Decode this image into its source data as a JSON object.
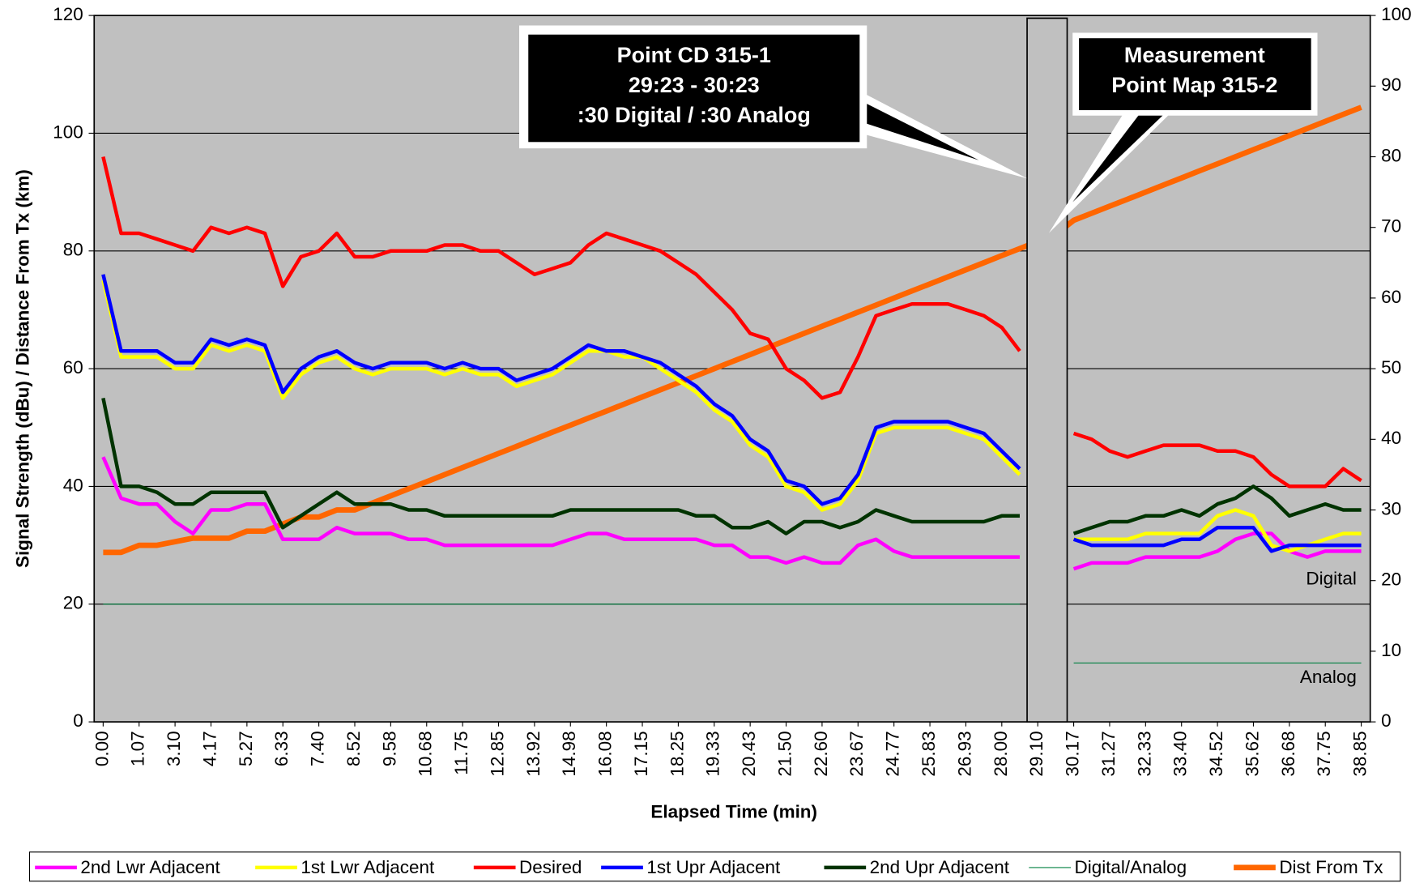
{
  "chart_data": {
    "type": "line",
    "x_label": "Elapsed Time (min)",
    "y_label": "Signal Strength (dBu) / Distance From Tx (km)",
    "categories": [
      "0.00",
      null,
      "1.07",
      null,
      "3.10",
      null,
      "4.17",
      null,
      "5.27",
      null,
      "6.33",
      null,
      "7.40",
      null,
      "8.52",
      null,
      "9.58",
      null,
      "10.68",
      null,
      "11.75",
      null,
      "12.85",
      null,
      "13.92",
      null,
      "14.98",
      null,
      "16.08",
      null,
      "17.15",
      null,
      "18.25",
      null,
      "19.33",
      null,
      "20.43",
      null,
      "21.50",
      null,
      "22.60",
      null,
      "23.67",
      null,
      "24.77",
      null,
      "25.83",
      null,
      "26.93",
      null,
      "28.00",
      null,
      "29.10",
      null,
      "30.17",
      null,
      "31.27",
      null,
      "32.33",
      null,
      "33.40",
      null,
      "34.52",
      null,
      "35.62",
      null,
      "36.68",
      null,
      "37.75",
      null,
      "38.85"
    ],
    "ylim": [
      0,
      120
    ],
    "yticks": [
      0,
      20,
      40,
      60,
      80,
      100,
      120
    ],
    "y2lim": [
      0,
      100
    ],
    "y2ticks": [
      0,
      10,
      20,
      30,
      40,
      50,
      60,
      70,
      80,
      90,
      100
    ],
    "grid": true,
    "legend": "bottom",
    "series": [
      {
        "name": "2nd Lwr Adjacent",
        "color": "#ff00ff",
        "values": [
          45,
          38,
          37,
          37,
          34,
          32,
          36,
          36,
          37,
          37,
          31,
          31,
          31,
          33,
          32,
          32,
          32,
          31,
          31,
          30,
          30,
          30,
          30,
          30,
          30,
          30,
          31,
          32,
          32,
          31,
          31,
          31,
          31,
          31,
          30,
          30,
          28,
          28,
          27,
          28,
          27,
          27,
          30,
          31,
          29,
          28,
          28,
          28,
          28,
          28,
          28,
          28,
          null,
          null,
          26,
          27,
          27,
          27,
          28,
          28,
          28,
          28,
          29,
          31,
          32,
          32,
          29,
          28,
          29,
          29,
          29
        ]
      },
      {
        "name": "1st Lwr Adjacent",
        "color": "#ffff00",
        "values": [
          75,
          62,
          62,
          62,
          60,
          60,
          64,
          63,
          64,
          63,
          55,
          59,
          61,
          62,
          60,
          59,
          60,
          60,
          60,
          59,
          60,
          59,
          59,
          57,
          58,
          59,
          61,
          63,
          63,
          62,
          62,
          60,
          58,
          56,
          53,
          51,
          47,
          45,
          40,
          39,
          36,
          37,
          41,
          49,
          50,
          50,
          50,
          50,
          49,
          48,
          45,
          42,
          null,
          null,
          31,
          31,
          31,
          31,
          32,
          32,
          32,
          32,
          35,
          36,
          35,
          30,
          29,
          30,
          31,
          32,
          32
        ]
      },
      {
        "name": "Desired",
        "color": "#ff0000",
        "values": [
          96,
          83,
          83,
          82,
          81,
          80,
          84,
          83,
          84,
          83,
          74,
          79,
          80,
          83,
          79,
          79,
          80,
          80,
          80,
          81,
          81,
          80,
          80,
          78,
          76,
          77,
          78,
          81,
          83,
          82,
          81,
          80,
          78,
          76,
          73,
          70,
          66,
          65,
          60,
          58,
          55,
          56,
          62,
          69,
          70,
          71,
          71,
          71,
          70,
          69,
          67,
          63,
          null,
          null,
          49,
          48,
          46,
          45,
          46,
          47,
          47,
          47,
          46,
          46,
          45,
          42,
          40,
          40,
          40,
          43,
          41
        ]
      },
      {
        "name": "1st Upr Adjacent",
        "color": "#0000ff",
        "values": [
          76,
          63,
          63,
          63,
          61,
          61,
          65,
          64,
          65,
          64,
          56,
          60,
          62,
          63,
          61,
          60,
          61,
          61,
          61,
          60,
          61,
          60,
          60,
          58,
          59,
          60,
          62,
          64,
          63,
          63,
          62,
          61,
          59,
          57,
          54,
          52,
          48,
          46,
          41,
          40,
          37,
          38,
          42,
          50,
          51,
          51,
          51,
          51,
          50,
          49,
          46,
          43,
          null,
          null,
          31,
          30,
          30,
          30,
          30,
          30,
          31,
          31,
          33,
          33,
          33,
          29,
          30,
          30,
          30,
          30,
          30
        ]
      },
      {
        "name": "2nd Upr Adjacent",
        "color": "#003300",
        "values": [
          55,
          40,
          40,
          39,
          37,
          37,
          39,
          39,
          39,
          39,
          33,
          35,
          37,
          39,
          37,
          37,
          37,
          36,
          36,
          35,
          35,
          35,
          35,
          35,
          35,
          35,
          36,
          36,
          36,
          36,
          36,
          36,
          36,
          35,
          35,
          33,
          33,
          34,
          32,
          34,
          34,
          33,
          34,
          36,
          35,
          34,
          34,
          34,
          34,
          34,
          35,
          35,
          null,
          null,
          32,
          33,
          34,
          34,
          35,
          35,
          36,
          35,
          37,
          38,
          40,
          38,
          35,
          36,
          37,
          36,
          36
        ]
      },
      {
        "name": "Digital/Analog",
        "color": "#008040",
        "width": 1,
        "values": [
          20,
          20,
          20,
          20,
          20,
          20,
          20,
          20,
          20,
          20,
          20,
          20,
          20,
          20,
          20,
          20,
          20,
          20,
          20,
          20,
          20,
          20,
          20,
          20,
          20,
          20,
          20,
          20,
          20,
          20,
          20,
          20,
          20,
          20,
          20,
          20,
          20,
          20,
          20,
          20,
          20,
          20,
          20,
          20,
          20,
          20,
          20,
          20,
          20,
          20,
          20,
          20,
          null,
          null,
          10,
          10,
          10,
          10,
          10,
          10,
          10,
          10,
          10,
          10,
          10,
          10,
          10,
          10,
          10,
          10,
          10
        ]
      },
      {
        "name": "Dist From Tx",
        "color": "#ff6600",
        "width": 6,
        "axis": "y2",
        "values": [
          24,
          24,
          25,
          25,
          25.5,
          26,
          26,
          26,
          27,
          27,
          28,
          29,
          29,
          30,
          30,
          31,
          32,
          33,
          34,
          35,
          36,
          37,
          38,
          39,
          40,
          41,
          42,
          43,
          44,
          45,
          46,
          47,
          48,
          49,
          50,
          51,
          52,
          53,
          54,
          55,
          56,
          57,
          58,
          59,
          60,
          61,
          62,
          63,
          64,
          65,
          66,
          67,
          68,
          69,
          71,
          72,
          73,
          74,
          75,
          76,
          77,
          78,
          79,
          80,
          81,
          82,
          83,
          84,
          85,
          86,
          87
        ]
      }
    ],
    "annotations": [
      [
        "Point CD 315-1",
        "29:23 -  30:23",
        ":30 Digital / :30 Analog"
      ],
      [
        "Measurement",
        "Point Map 315-2"
      ],
      [
        "Digital"
      ],
      [
        "Analog"
      ]
    ]
  }
}
